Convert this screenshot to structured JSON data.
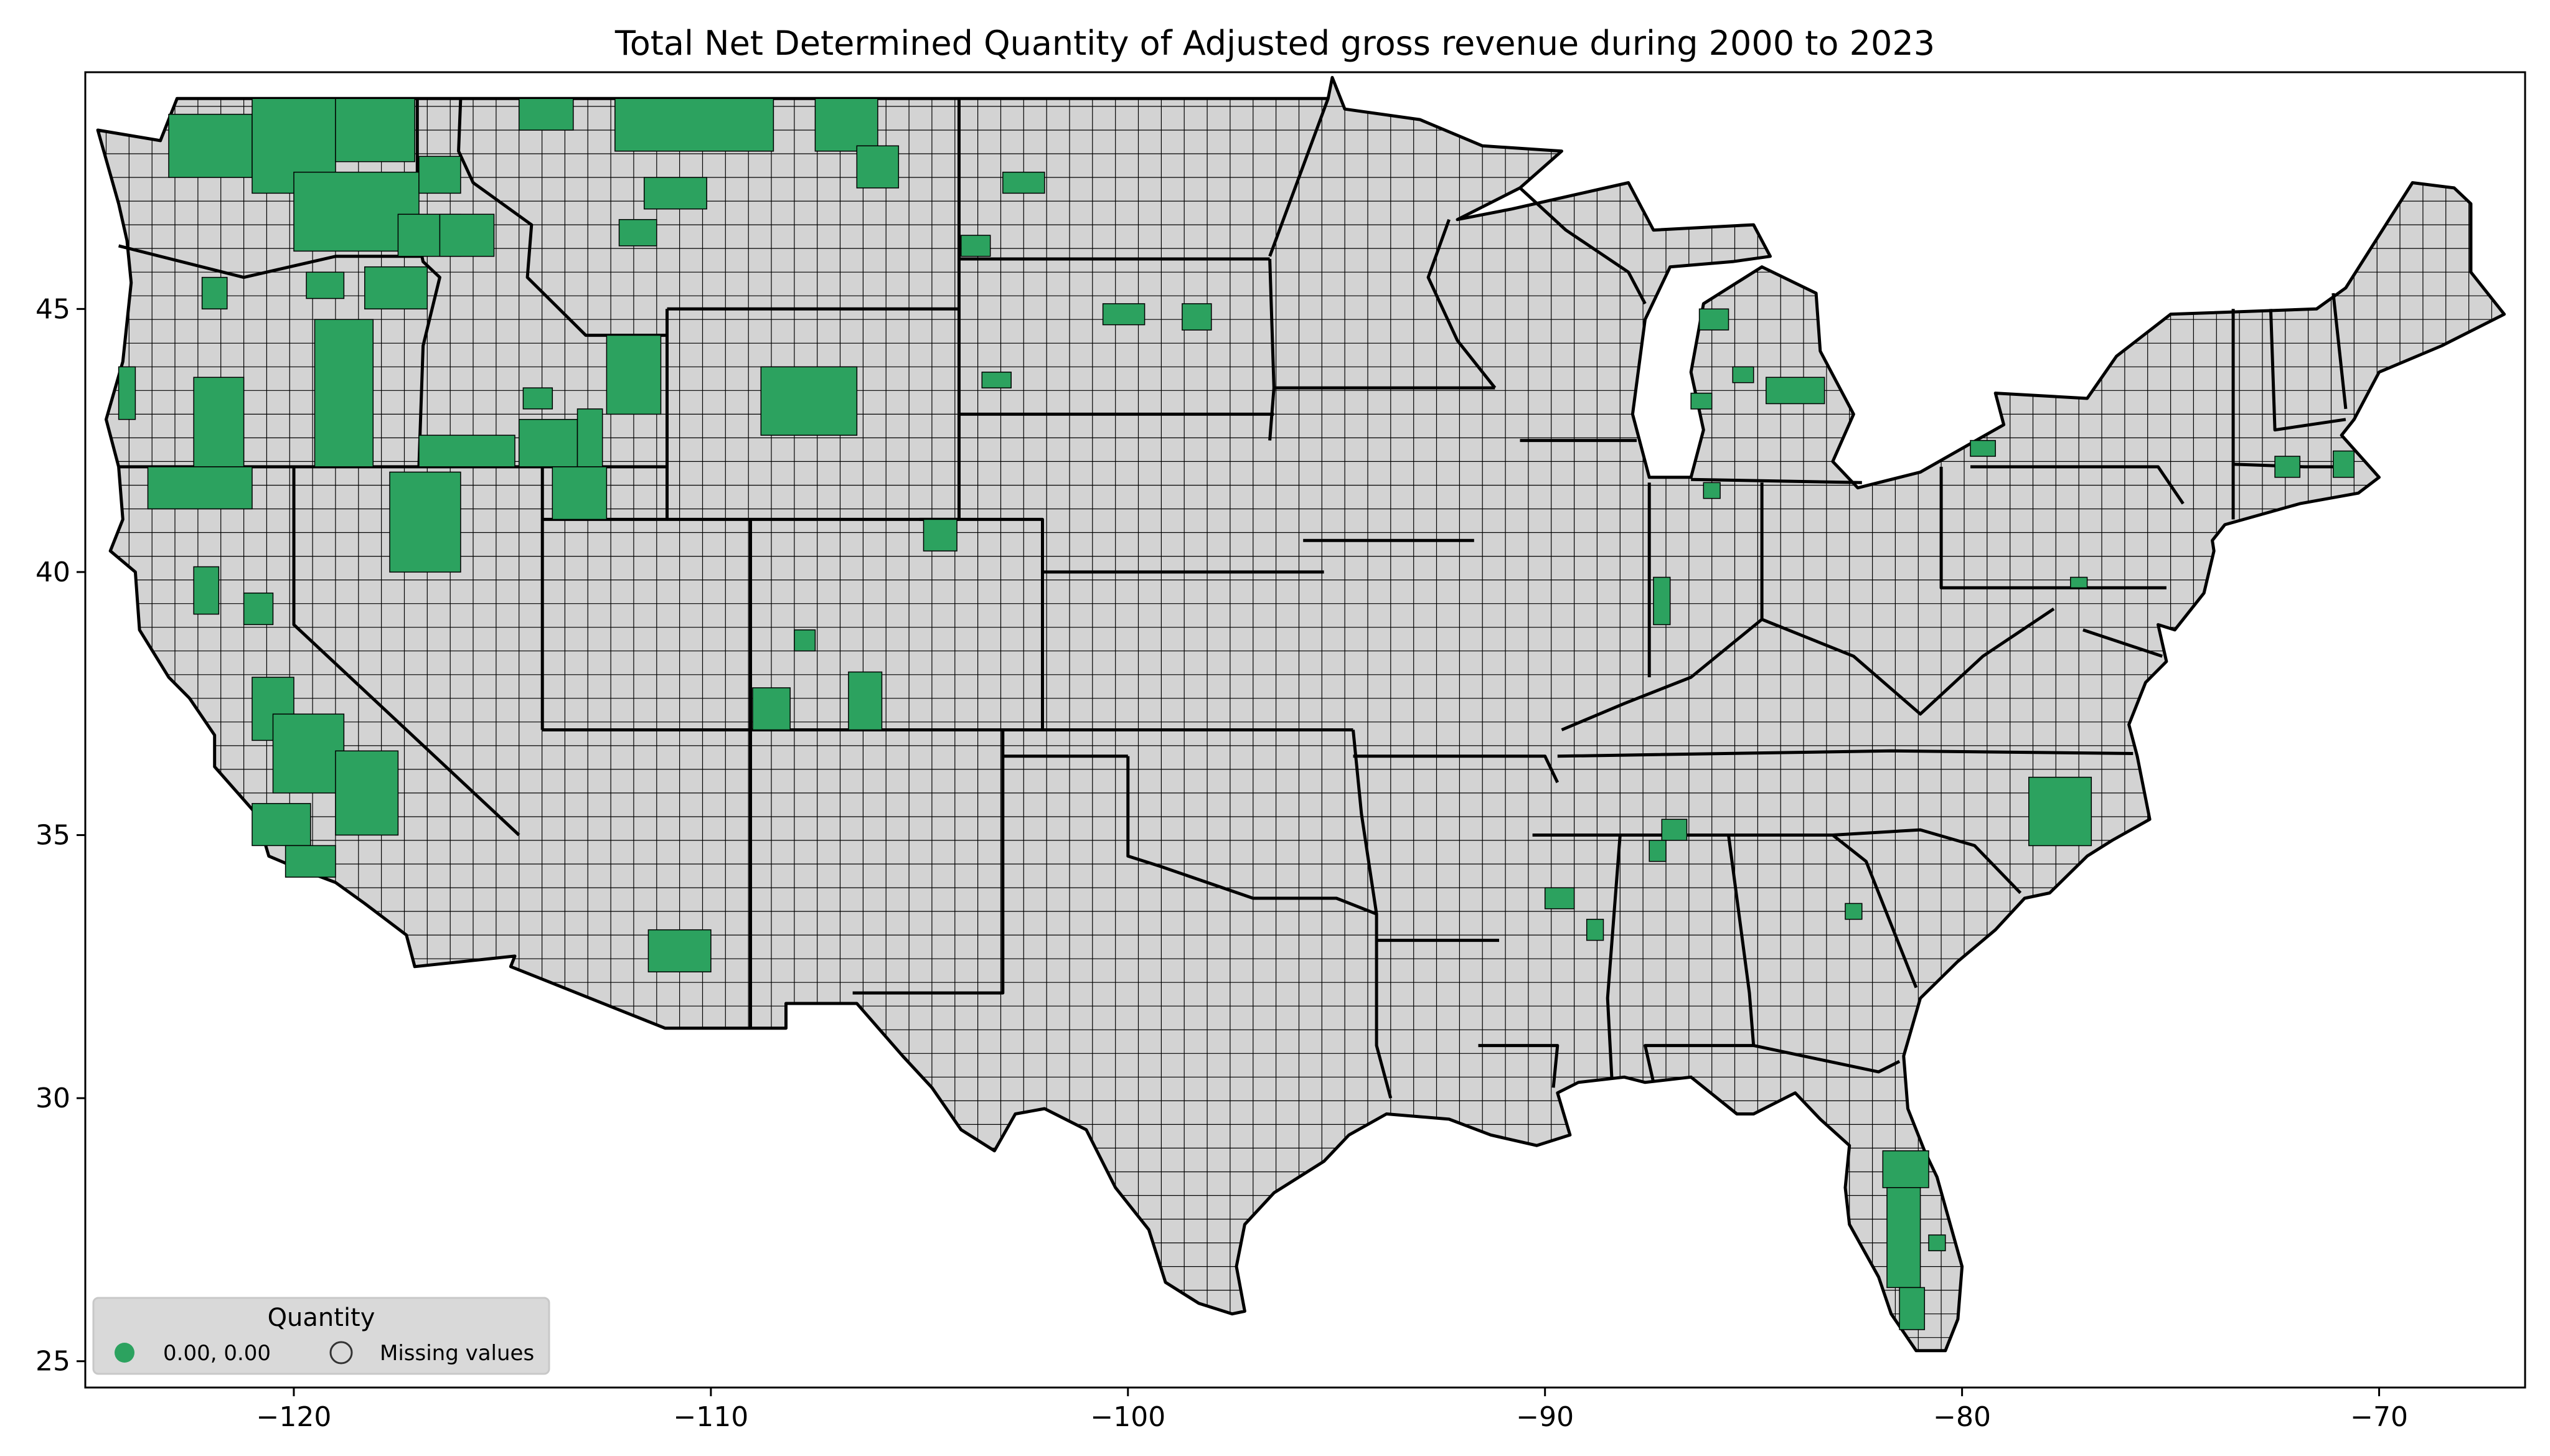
{
  "title": "Total Net Determined Quantity of Adjusted gross revenue during 2000 to 2023",
  "chart_data": {
    "type": "choropleth",
    "region": "Contiguous United States (counties)",
    "x_axis": {
      "range": [
        -125,
        -66.5
      ],
      "ticks": [
        -120,
        -110,
        -100,
        -90,
        -80,
        -70
      ],
      "tick_labels": [
        "−120",
        "−110",
        "−100",
        "−90",
        "−80",
        "−70"
      ]
    },
    "y_axis": {
      "range": [
        24.5,
        49.5
      ],
      "ticks": [
        25,
        30,
        35,
        40,
        45
      ],
      "tick_labels": [
        "25",
        "30",
        "35",
        "40",
        "45"
      ]
    },
    "grid": false,
    "legend": {
      "title": "Quantity",
      "placement": "lower-left",
      "entries": [
        {
          "label": "0.00, 0.00",
          "color": "#2ca25f",
          "marker": "filled-circle"
        },
        {
          "label": "Missing values",
          "color": "#d3d3d3",
          "marker": "hollow-circle"
        }
      ]
    },
    "colors": {
      "data": "#2ca25f",
      "missing": "#d3d3d3",
      "border": "#000000"
    },
    "highlighted_counties_approx": [
      {
        "name": "NE Washington",
        "lon": -118.5,
        "lat": 48.3
      },
      {
        "name": "Central Washington",
        "lon": -119.8,
        "lat": 47.2
      },
      {
        "name": "SE Washington",
        "lon": -117.6,
        "lat": 46.6
      },
      {
        "name": "Idaho panhandle",
        "lon": -116.2,
        "lat": 46.2
      },
      {
        "name": "N Oregon",
        "lon": -120.0,
        "lat": 45.3
      },
      {
        "name": "Oregon coast",
        "lon": -124.1,
        "lat": 43.2
      },
      {
        "name": "SE Oregon",
        "lon": -118.8,
        "lat": 43.0
      },
      {
        "name": "SE Idaho",
        "lon": -113.0,
        "lat": 42.8
      },
      {
        "name": "S Idaho",
        "lon": -115.5,
        "lat": 42.8
      },
      {
        "name": "NE California",
        "lon": -121.7,
        "lat": 41.8
      },
      {
        "name": "N Nevada",
        "lon": -117.0,
        "lat": 40.8
      },
      {
        "name": "N Utah",
        "lon": -112.5,
        "lat": 41.8
      },
      {
        "name": "Sacramento Valley",
        "lon": -121.8,
        "lat": 39.6
      },
      {
        "name": "San Joaquin Valley",
        "lon": -119.8,
        "lat": 36.6
      },
      {
        "name": "Central Coast CA",
        "lon": -120.4,
        "lat": 35.3
      },
      {
        "name": "N Montana",
        "lon": -109.5,
        "lat": 48.5
      },
      {
        "name": "Central Montana",
        "lon": -110.5,
        "lat": 47.3
      },
      {
        "name": "Wyoming",
        "lon": -108.0,
        "lat": 43.3
      },
      {
        "name": "N Colorado",
        "lon": -104.6,
        "lat": 40.6
      },
      {
        "name": "SW Colorado",
        "lon": -108.8,
        "lat": 37.5
      },
      {
        "name": "S Colorado",
        "lon": -106.3,
        "lat": 37.8
      },
      {
        "name": "SE Arizona",
        "lon": -110.8,
        "lat": 33.0
      },
      {
        "name": "North Dakota",
        "lon": -102.0,
        "lat": 47.3
      },
      {
        "name": "South Dakota",
        "lon": -98.3,
        "lat": 44.9
      },
      {
        "name": "Michigan",
        "lon": -85.0,
        "lat": 43.6
      },
      {
        "name": "NW Indiana",
        "lon": -87.3,
        "lat": 38.8
      },
      {
        "name": "N Alabama",
        "lon": -86.7,
        "lat": 35.0
      },
      {
        "name": "Mississippi",
        "lon": -89.6,
        "lat": 33.9
      },
      {
        "name": "North Carolina",
        "lon": -77.5,
        "lat": 35.3
      },
      {
        "name": "Florida",
        "lon": -81.4,
        "lat": 27.6
      },
      {
        "name": "Massachusetts",
        "lon": -71.7,
        "lat": 41.9
      }
    ]
  }
}
